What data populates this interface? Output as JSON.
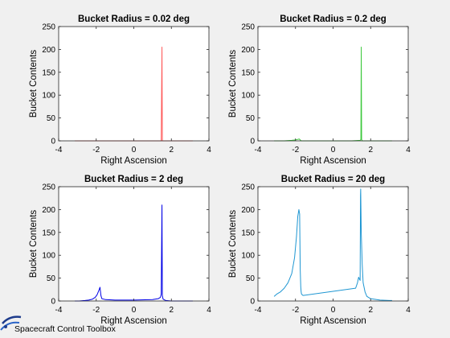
{
  "watermark": "Spacecraft Control Toolbox",
  "chart_data": [
    {
      "type": "line",
      "title": "Bucket Radius = 0.02 deg",
      "xlabel": "Right Ascension",
      "ylabel": "Bucket Contents",
      "xlim": [
        -4,
        4
      ],
      "ylim": [
        0,
        250
      ],
      "xticks": [
        "-4",
        "-2",
        "0",
        "2",
        "4"
      ],
      "yticks": [
        "0",
        "50",
        "100",
        "150",
        "200",
        "250"
      ],
      "grid": false,
      "color": "#ff5a5a",
      "series": [
        {
          "x": [
            -3.14,
            -2.5,
            -1.8,
            -1.0,
            0.0,
            1.0,
            1.46,
            1.5,
            1.52,
            1.54,
            2.0,
            2.6,
            3.14
          ],
          "y": [
            0,
            0,
            0,
            0,
            0,
            0,
            0,
            205,
            0,
            0,
            0,
            0,
            0
          ]
        }
      ]
    },
    {
      "type": "line",
      "title": "Bucket Radius = 0.2 deg",
      "xlabel": "Right Ascension",
      "ylabel": "Bucket Contents",
      "xlim": [
        -4,
        4
      ],
      "ylim": [
        0,
        250
      ],
      "xticks": [
        "-4",
        "-2",
        "0",
        "2",
        "4"
      ],
      "yticks": [
        "0",
        "50",
        "100",
        "150",
        "200",
        "250"
      ],
      "grid": false,
      "color": "#3cc83c",
      "series": [
        {
          "x": [
            -3.14,
            -2.6,
            -2.2,
            -2.0,
            -1.9,
            -1.8,
            -1.75,
            -1.7,
            -1.2,
            0.0,
            1.0,
            1.45,
            1.48,
            1.5,
            1.52,
            1.55,
            2.0,
            2.6,
            3.14
          ],
          "y": [
            0,
            0,
            1,
            2,
            3,
            4,
            2,
            0,
            0,
            0,
            0,
            1,
            3,
            205,
            3,
            0,
            0,
            0,
            0
          ]
        }
      ]
    },
    {
      "type": "line",
      "title": "Bucket Radius = 2 deg",
      "xlabel": "Right Ascension",
      "ylabel": "Bucket Contents",
      "xlim": [
        -4,
        4
      ],
      "ylim": [
        0,
        250
      ],
      "xticks": [
        "-4",
        "-2",
        "0",
        "2",
        "4"
      ],
      "yticks": [
        "0",
        "50",
        "100",
        "150",
        "200",
        "250"
      ],
      "grid": false,
      "color": "#0000e6",
      "series": [
        {
          "x": [
            -3.14,
            -2.9,
            -2.6,
            -2.4,
            -2.2,
            -2.05,
            -1.95,
            -1.85,
            -1.8,
            -1.75,
            -1.7,
            -1.5,
            -1.0,
            0.0,
            1.0,
            1.3,
            1.42,
            1.46,
            1.5,
            1.52,
            1.56,
            1.7,
            2.0,
            2.6,
            3.14
          ],
          "y": [
            0,
            0,
            1,
            2,
            4,
            8,
            14,
            24,
            30,
            12,
            5,
            3,
            2,
            2,
            3,
            5,
            8,
            15,
            210,
            12,
            4,
            1,
            0,
            0,
            0
          ]
        }
      ]
    },
    {
      "type": "line",
      "title": "Bucket Radius = 20 deg",
      "xlabel": "Right Ascension",
      "ylabel": "Bucket Contents",
      "xlim": [
        -4,
        4
      ],
      "ylim": [
        0,
        250
      ],
      "xticks": [
        "-4",
        "-2",
        "0",
        "2",
        "4"
      ],
      "yticks": [
        "0",
        "50",
        "100",
        "150",
        "200",
        "250"
      ],
      "grid": false,
      "color": "#1e96d2",
      "series": [
        {
          "x": [
            -3.14,
            -3.0,
            -2.8,
            -2.6,
            -2.4,
            -2.2,
            -2.05,
            -1.95,
            -1.88,
            -1.82,
            -1.78,
            -1.75,
            -1.72,
            -1.7,
            -1.68,
            -1.6,
            1.2,
            1.3,
            1.36,
            1.4,
            1.44,
            1.46,
            1.47,
            1.5,
            1.55,
            1.6,
            1.7,
            1.8,
            2.0,
            2.5,
            3.0,
            3.14
          ],
          "y": [
            10,
            15,
            20,
            28,
            40,
            60,
            95,
            140,
            185,
            200,
            190,
            70,
            30,
            20,
            15,
            12,
            28,
            40,
            52,
            48,
            45,
            230,
            245,
            150,
            80,
            40,
            20,
            10,
            5,
            2,
            1,
            1
          ]
        }
      ]
    }
  ]
}
